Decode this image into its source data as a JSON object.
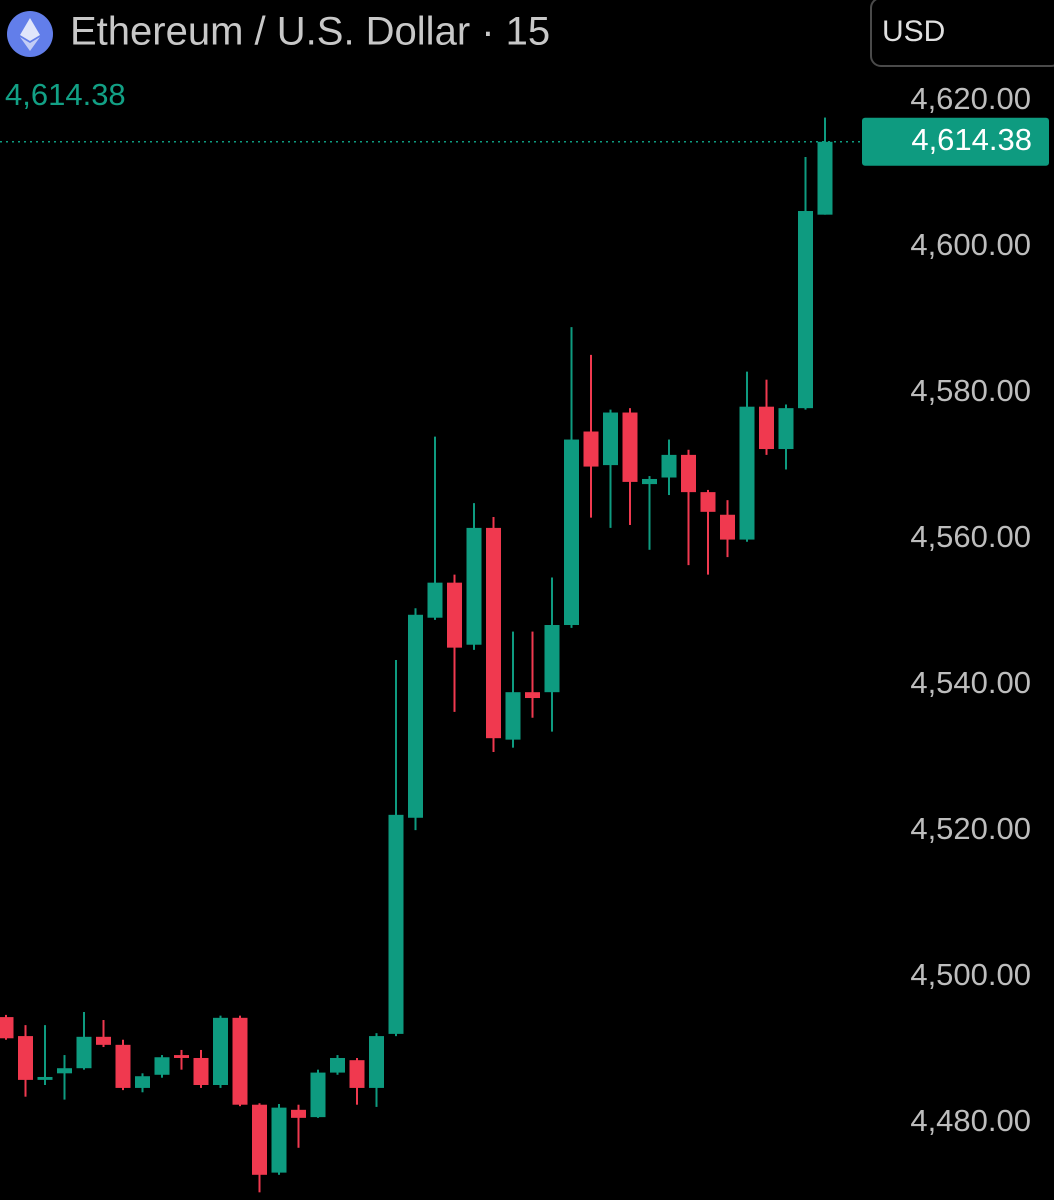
{
  "chart_data": {
    "type": "candlestick",
    "title": "Ethereum / U.S. Dollar · 15",
    "currency": "USD",
    "last_price": {
      "value": 4614.38,
      "label": "4,614.38"
    },
    "up_color": "#0e9b80",
    "down_color": "#f0394f",
    "categories": [
      null,
      null,
      null,
      null,
      null,
      null,
      null,
      null,
      null,
      null,
      null,
      null,
      null,
      null,
      null,
      null,
      null,
      null,
      null,
      null,
      null,
      null,
      null,
      null,
      null,
      null,
      null,
      null,
      null,
      null,
      null,
      null,
      null,
      null,
      null,
      null,
      null,
      null,
      null,
      null,
      null,
      null,
      null
    ],
    "open": [
      4494.5,
      4491.9,
      4485.9,
      4486.8,
      4487.5,
      4491.8,
      4490.7,
      4484.8,
      4486.6,
      4489.3,
      4488.9,
      4485.2,
      4494.4,
      4482.5,
      4473.2,
      4481.8,
      4480.8,
      4486.9,
      4488.6,
      4484.8,
      4492.2,
      4521.8,
      4549.2,
      4554.0,
      4545.5,
      4561.5,
      4532.5,
      4539.0,
      4539.0,
      4548.2,
      4574.7,
      4570.1,
      4577.3,
      4567.5,
      4568.4,
      4571.5,
      4566.4,
      4563.3,
      4559.9,
      4578.1,
      4572.3,
      4577.9,
      4604.4
    ],
    "high": [
      4494.8,
      4493.4,
      4493.4,
      4489.3,
      4495.2,
      4494.1,
      4491.4,
      4486.8,
      4489.3,
      4490.0,
      4490.0,
      4494.7,
      4494.7,
      4482.7,
      4482.6,
      4482.5,
      4487.3,
      4489.3,
      4488.9,
      4492.3,
      4543.4,
      4550.5,
      4574.0,
      4555.1,
      4564.9,
      4563.0,
      4547.3,
      4547.3,
      4554.7,
      4589.0,
      4585.2,
      4577.7,
      4577.9,
      4568.6,
      4573.6,
      4572.2,
      4566.7,
      4565.3,
      4582.9,
      4581.8,
      4578.4,
      4612.3,
      4617.7
    ],
    "low": [
      4491.4,
      4483.6,
      4485.2,
      4483.2,
      4487.3,
      4490.4,
      4484.5,
      4484.2,
      4486.2,
      4487.3,
      4484.8,
      4484.8,
      4482.3,
      4470.5,
      4472.9,
      4476.6,
      4480.7,
      4486.6,
      4482.5,
      4482.2,
      4491.9,
      4520.1,
      4548.9,
      4536.3,
      4544.8,
      4530.8,
      4531.4,
      4535.5,
      4533.6,
      4547.8,
      4562.9,
      4561.5,
      4561.9,
      4558.5,
      4566.0,
      4556.4,
      4555.1,
      4557.5,
      4559.6,
      4571.5,
      4569.5,
      4577.7,
      4604.4
    ],
    "close": [
      4491.6,
      4485.9,
      4486.3,
      4487.5,
      4491.8,
      4490.7,
      4484.8,
      4486.4,
      4489.0,
      4488.9,
      4485.2,
      4494.4,
      4482.5,
      4472.9,
      4482.1,
      4480.7,
      4486.9,
      4488.9,
      4484.8,
      4491.9,
      4522.2,
      4549.6,
      4554.0,
      4545.1,
      4561.5,
      4532.7,
      4539.0,
      4538.2,
      4548.2,
      4573.6,
      4569.9,
      4577.3,
      4567.8,
      4568.2,
      4571.5,
      4566.4,
      4563.7,
      4559.9,
      4578.1,
      4572.3,
      4577.9,
      4604.9,
      4614.38
    ],
    "ylim": [
      4469.45,
      4633.8
    ],
    "yticks": [
      {
        "value": 4620,
        "label": "4,620.00"
      },
      {
        "value": 4600,
        "label": "4,600.00"
      },
      {
        "value": 4580,
        "label": "4,580.00"
      },
      {
        "value": 4560,
        "label": "4,560.00"
      },
      {
        "value": 4540,
        "label": "4,540.00"
      },
      {
        "value": 4520,
        "label": "4,520.00"
      },
      {
        "value": 4500,
        "label": "4,500.00"
      },
      {
        "value": 4480,
        "label": "4,480.00"
      }
    ]
  }
}
